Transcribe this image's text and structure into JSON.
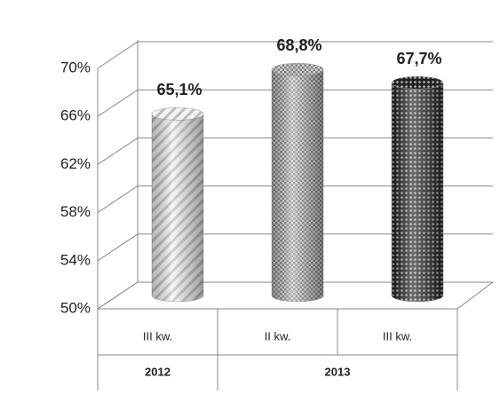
{
  "chart_data": {
    "type": "cylinder",
    "groups": [
      {
        "name": "2012",
        "categories": [
          "III kw."
        ]
      },
      {
        "name": "2013",
        "categories": [
          "II kw.",
          "III kw."
        ]
      }
    ],
    "values": [
      65.1,
      68.8,
      67.7
    ],
    "value_labels": [
      "65,1%",
      "68,8%",
      "67,7%"
    ],
    "ylim": [
      50,
      70
    ],
    "yticks": [
      {
        "value": 50,
        "label": "50%"
      },
      {
        "value": 54,
        "label": "54%"
      },
      {
        "value": 58,
        "label": "58%"
      },
      {
        "value": 62,
        "label": "62%"
      },
      {
        "value": 66,
        "label": "66%"
      },
      {
        "value": 70,
        "label": "70%"
      }
    ],
    "grid": true
  }
}
